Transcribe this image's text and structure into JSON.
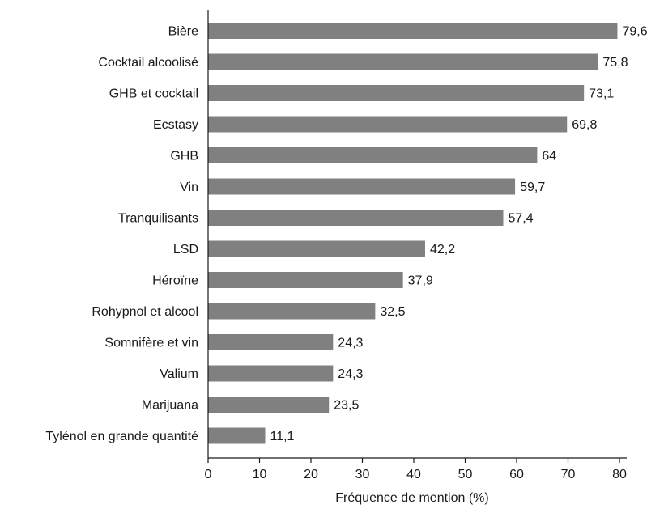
{
  "chart_data": {
    "type": "bar",
    "orientation": "horizontal",
    "categories": [
      "Bière",
      "Cocktail alcoolisé",
      "GHB et cocktail",
      "Ecstasy",
      "GHB",
      "Vin",
      "Tranquilisants",
      "LSD",
      "Héroïne",
      "Rohypnol et alcool",
      "Somnifère et vin",
      "Valium",
      "Marijuana",
      "Tylénol en grande quantité"
    ],
    "values": [
      79.6,
      75.8,
      73.1,
      69.8,
      64,
      59.7,
      57.4,
      42.2,
      37.9,
      32.5,
      24.3,
      24.3,
      23.5,
      11.1
    ],
    "value_labels": [
      "79,6",
      "75,8",
      "73,1",
      "69,8",
      "64",
      "59,7",
      "57,4",
      "42,2",
      "37,9",
      "32,5",
      "24,3",
      "24,3",
      "23,5",
      "11,1"
    ],
    "xlabel": "Fréquence de mention (%)",
    "ylabel": "",
    "title": "",
    "xlim": [
      0,
      80
    ],
    "xticks": [
      0,
      10,
      20,
      30,
      40,
      50,
      60,
      70,
      80
    ],
    "grid": false,
    "bar_color": "#808080"
  }
}
